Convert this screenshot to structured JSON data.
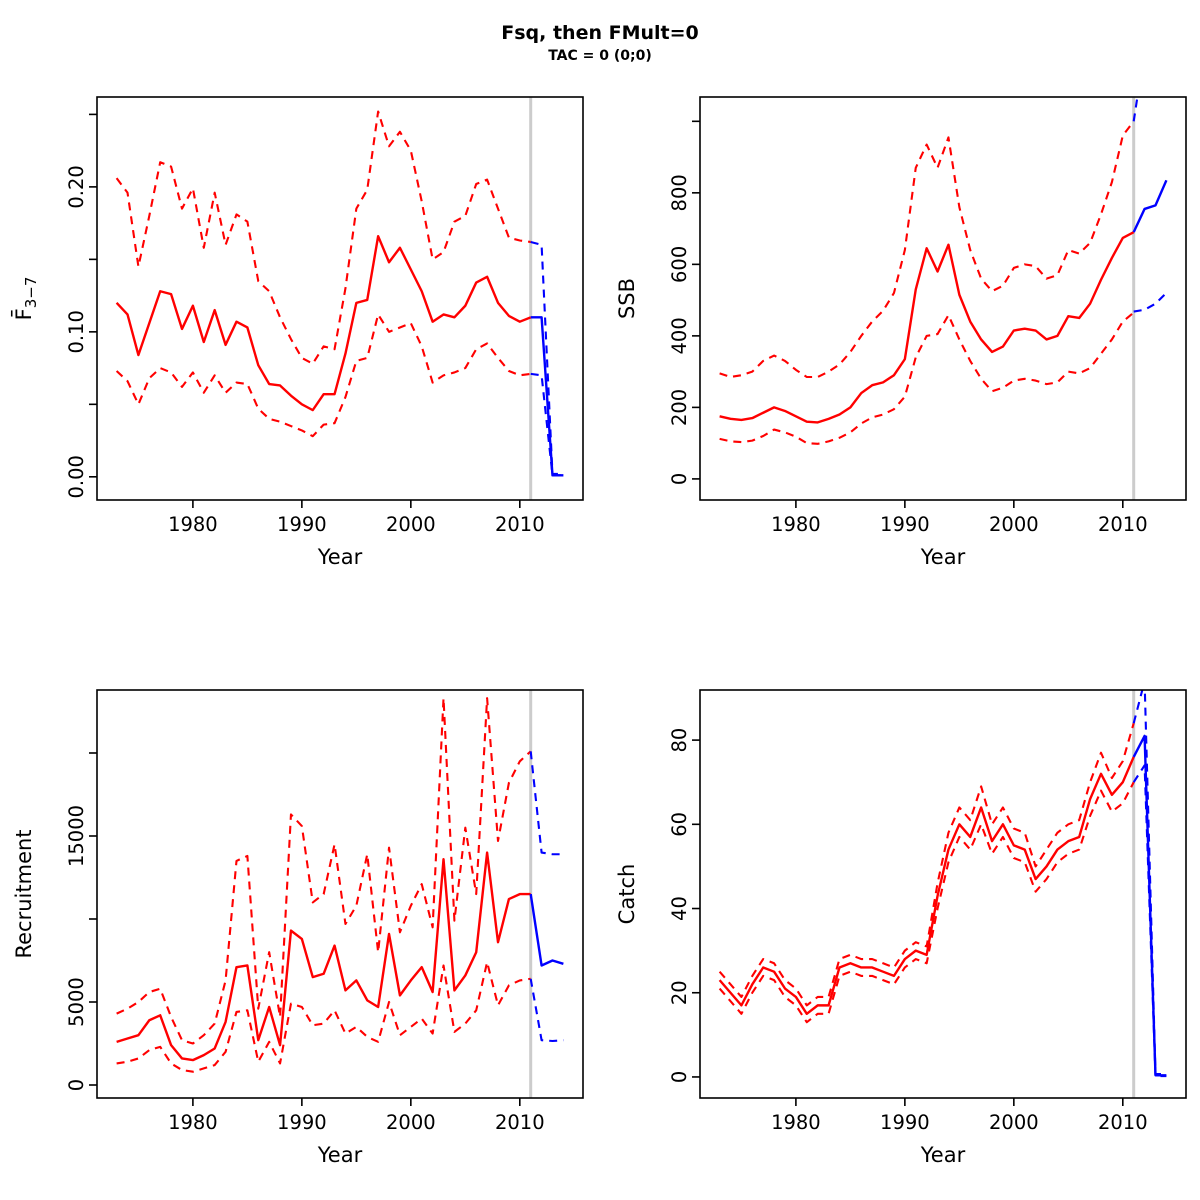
{
  "title": {
    "main": "Fsq, then FMult=0",
    "sub": "TAC = 0 (0;0)"
  },
  "colors": {
    "history": "#ff0000",
    "projection": "#0000ff",
    "divider": "#cccccc",
    "axis": "#000000"
  },
  "projection_start_year": 2011,
  "chart_data": [
    {
      "type": "line",
      "name": "fbar",
      "ylabel": {
        "base": "F̄",
        "sub": "3−7"
      },
      "xlabel": "Year",
      "xlim": [
        1971.2,
        2015.8
      ],
      "ylim": [
        -0.016,
        0.262
      ],
      "x_ticks": {
        "values": [
          1980,
          1990,
          2000,
          2010
        ],
        "labels": [
          "1980",
          "1990",
          "2000",
          "2010"
        ]
      },
      "y_ticks": {
        "values": [
          0,
          0.05,
          0.1,
          0.15,
          0.2,
          0.25
        ],
        "labels": [
          "0.00",
          "",
          "0.10",
          "",
          "0.20",
          ""
        ]
      },
      "vline_year": 2011,
      "series": [
        {
          "id": "upper-history",
          "role": "upper95",
          "period": "history",
          "line": "dashed",
          "color_key": "history",
          "start_year": 1973,
          "values": [
            0.206,
            0.196,
            0.145,
            0.18,
            0.217,
            0.214,
            0.185,
            0.199,
            0.158,
            0.196,
            0.16,
            0.181,
            0.176,
            0.135,
            0.128,
            0.11,
            0.095,
            0.082,
            0.078,
            0.09,
            0.088,
            0.13,
            0.185,
            0.198,
            0.252,
            0.228,
            0.238,
            0.225,
            0.19,
            0.15,
            0.155,
            0.176,
            0.18,
            0.202,
            0.205,
            0.185,
            0.165,
            0.163,
            0.162
          ]
        },
        {
          "id": "median-history",
          "role": "median",
          "period": "history",
          "line": "solid",
          "color_key": "history",
          "start_year": 1973,
          "values": [
            0.12,
            0.112,
            0.084,
            0.106,
            0.128,
            0.126,
            0.102,
            0.118,
            0.093,
            0.115,
            0.091,
            0.107,
            0.103,
            0.077,
            0.064,
            0.063,
            0.056,
            0.05,
            0.046,
            0.057,
            0.057,
            0.085,
            0.12,
            0.122,
            0.166,
            0.148,
            0.158,
            0.143,
            0.128,
            0.107,
            0.112,
            0.11,
            0.118,
            0.134,
            0.138,
            0.12,
            0.111,
            0.107,
            0.11
          ]
        },
        {
          "id": "lower-history",
          "role": "lower5",
          "period": "history",
          "line": "dashed",
          "color_key": "history",
          "start_year": 1973,
          "values": [
            0.073,
            0.066,
            0.05,
            0.068,
            0.075,
            0.072,
            0.062,
            0.072,
            0.058,
            0.07,
            0.058,
            0.065,
            0.064,
            0.047,
            0.04,
            0.038,
            0.035,
            0.032,
            0.028,
            0.036,
            0.037,
            0.055,
            0.08,
            0.082,
            0.112,
            0.1,
            0.103,
            0.106,
            0.09,
            0.065,
            0.07,
            0.072,
            0.075,
            0.088,
            0.092,
            0.082,
            0.073,
            0.07,
            0.071
          ]
        },
        {
          "id": "upper-projection",
          "role": "upper95",
          "period": "projection",
          "line": "dashed",
          "color_key": "projection",
          "start_year": 2011,
          "values": [
            0.162,
            0.16,
            0.002,
            0.002
          ]
        },
        {
          "id": "median-projection",
          "role": "median",
          "period": "projection",
          "line": "solid",
          "color_key": "projection",
          "start_year": 2011,
          "values": [
            0.11,
            0.11,
            0.001,
            0.001
          ]
        },
        {
          "id": "lower-projection",
          "role": "lower5",
          "period": "projection",
          "line": "dashed",
          "color_key": "projection",
          "start_year": 2011,
          "values": [
            0.071,
            0.07,
            0.001,
            0.001
          ]
        }
      ]
    },
    {
      "type": "line",
      "name": "ssb",
      "ylabel": "SSB",
      "xlabel": "Year",
      "xlim": [
        1971.2,
        2015.8
      ],
      "ylim": [
        -59,
        1068
      ],
      "x_ticks": {
        "values": [
          1980,
          1990,
          2000,
          2010
        ],
        "labels": [
          "1980",
          "1990",
          "2000",
          "2010"
        ]
      },
      "y_ticks": {
        "values": [
          0,
          200,
          400,
          600,
          800,
          1000
        ],
        "labels": [
          "0",
          "200",
          "400",
          "600",
          "800",
          ""
        ]
      },
      "vline_year": 2011,
      "series": [
        {
          "id": "upper-history",
          "role": "upper95",
          "period": "history",
          "line": "dashed",
          "color_key": "history",
          "start_year": 1973,
          "values": [
            295,
            285,
            290,
            300,
            330,
            345,
            330,
            305,
            285,
            285,
            300,
            320,
            355,
            400,
            440,
            470,
            520,
            640,
            870,
            935,
            870,
            955,
            760,
            640,
            560,
            525,
            540,
            590,
            600,
            595,
            560,
            570,
            640,
            630,
            660,
            740,
            830,
            960,
            1000
          ]
        },
        {
          "id": "median-history",
          "role": "median",
          "period": "history",
          "line": "solid",
          "color_key": "history",
          "start_year": 1973,
          "values": [
            175,
            168,
            165,
            170,
            185,
            200,
            190,
            175,
            160,
            158,
            168,
            180,
            200,
            240,
            262,
            270,
            290,
            335,
            530,
            645,
            580,
            655,
            515,
            440,
            390,
            355,
            370,
            415,
            420,
            415,
            390,
            400,
            455,
            450,
            490,
            557,
            618,
            674,
            690
          ]
        },
        {
          "id": "lower-history",
          "role": "lower5",
          "period": "history",
          "line": "dashed",
          "color_key": "history",
          "start_year": 1973,
          "values": [
            112,
            105,
            103,
            107,
            120,
            138,
            130,
            118,
            100,
            98,
            105,
            115,
            130,
            155,
            172,
            180,
            195,
            230,
            340,
            400,
            405,
            458,
            390,
            330,
            280,
            245,
            255,
            275,
            280,
            275,
            265,
            270,
            300,
            295,
            310,
            350,
            390,
            440,
            465
          ]
        },
        {
          "id": "upper-projection",
          "role": "upper95",
          "period": "projection",
          "line": "dashed",
          "color_key": "projection",
          "start_year": 2011,
          "values": [
            1000,
            1200,
            1280,
            1350
          ]
        },
        {
          "id": "median-projection",
          "role": "median",
          "period": "projection",
          "line": "solid",
          "color_key": "projection",
          "start_year": 2011,
          "values": [
            690,
            755,
            765,
            835
          ]
        },
        {
          "id": "lower-projection",
          "role": "lower5",
          "period": "projection",
          "line": "dashed",
          "color_key": "projection",
          "start_year": 2011,
          "values": [
            468,
            473,
            490,
            520
          ]
        }
      ]
    },
    {
      "type": "line",
      "name": "recruitment",
      "ylabel": "Recruitment",
      "xlabel": "Year",
      "xlim": [
        1971.2,
        2015.8
      ],
      "ylim": [
        -783,
        23795
      ],
      "x_ticks": {
        "values": [
          1980,
          1990,
          2000,
          2010
        ],
        "labels": [
          "1980",
          "1990",
          "2000",
          "2010"
        ]
      },
      "y_ticks": {
        "values": [
          0,
          5000,
          10000,
          15000,
          20000
        ],
        "labels": [
          "0",
          "5000",
          "",
          "15000",
          ""
        ]
      },
      "vline_year": 2011,
      "series": [
        {
          "id": "upper-history",
          "role": "upper95",
          "period": "history",
          "line": "dashed",
          "color_key": "history",
          "start_year": 1973,
          "values": [
            4300,
            4600,
            5000,
            5600,
            5800,
            4100,
            2700,
            2500,
            3000,
            3700,
            6300,
            13500,
            13800,
            4600,
            8000,
            4100,
            16300,
            15600,
            11000,
            11500,
            14500,
            9700,
            10800,
            13900,
            8000,
            14300,
            9200,
            10800,
            12100,
            9500,
            23300,
            9900,
            15500,
            11500,
            23300,
            14700,
            18200,
            19500,
            20100
          ]
        },
        {
          "id": "median-history",
          "role": "median",
          "period": "history",
          "line": "solid",
          "color_key": "history",
          "start_year": 1973,
          "values": [
            2600,
            2800,
            3000,
            3900,
            4200,
            2400,
            1600,
            1500,
            1800,
            2200,
            3800,
            7100,
            7200,
            2700,
            4700,
            2400,
            9300,
            8800,
            6500,
            6700,
            8400,
            5700,
            6300,
            5100,
            4700,
            9100,
            5400,
            6300,
            7100,
            5600,
            13600,
            5700,
            6600,
            8000,
            14000,
            8600,
            11200,
            11500,
            11500
          ]
        },
        {
          "id": "lower-history",
          "role": "lower5",
          "period": "history",
          "line": "dashed",
          "color_key": "history",
          "start_year": 1973,
          "values": [
            1300,
            1400,
            1600,
            2100,
            2300,
            1300,
            900,
            800,
            1000,
            1200,
            2000,
            4400,
            4500,
            1400,
            2600,
            1300,
            4900,
            4700,
            3600,
            3700,
            4500,
            3100,
            3500,
            2900,
            2600,
            5000,
            3000,
            3500,
            4000,
            3100,
            7200,
            3200,
            3700,
            4500,
            7400,
            4800,
            6000,
            6300,
            6400
          ]
        },
        {
          "id": "upper-projection",
          "role": "upper95",
          "period": "projection",
          "line": "dashed",
          "color_key": "projection",
          "start_year": 2011,
          "values": [
            20100,
            14000,
            13900,
            13900
          ]
        },
        {
          "id": "median-projection",
          "role": "median",
          "period": "projection",
          "line": "solid",
          "color_key": "projection",
          "start_year": 2011,
          "values": [
            11500,
            7200,
            7500,
            7300
          ]
        },
        {
          "id": "lower-projection",
          "role": "lower5",
          "period": "projection",
          "line": "dashed",
          "color_key": "projection",
          "start_year": 2011,
          "values": [
            6400,
            2700,
            2650,
            2700
          ]
        }
      ]
    },
    {
      "type": "line",
      "name": "catch",
      "ylabel": "Catch",
      "xlabel": "Year",
      "xlim": [
        1971.2,
        2015.8
      ],
      "ylim": [
        -5,
        91.9
      ],
      "x_ticks": {
        "values": [
          1980,
          1990,
          2000,
          2010
        ],
        "labels": [
          "1980",
          "1990",
          "2000",
          "2010"
        ]
      },
      "y_ticks": {
        "values": [
          0,
          20,
          40,
          60,
          80
        ],
        "labels": [
          "0",
          "20",
          "40",
          "60",
          "80"
        ]
      },
      "vline_year": 2011,
      "series": [
        {
          "id": "upper-history",
          "role": "upper95",
          "period": "history",
          "line": "dashed",
          "color_key": "history",
          "start_year": 1973,
          "values": [
            25,
            22,
            19,
            24,
            28,
            27,
            23,
            21,
            17,
            19,
            19,
            28,
            29,
            28,
            28,
            27,
            26,
            30,
            32,
            31,
            46,
            58,
            64,
            61,
            69,
            60,
            64,
            59,
            58,
            50,
            54,
            58,
            60,
            61,
            70,
            77,
            71,
            75,
            84
          ]
        },
        {
          "id": "median-history",
          "role": "median",
          "period": "history",
          "line": "solid",
          "color_key": "history",
          "start_year": 1973,
          "values": [
            23,
            20,
            17,
            22,
            26,
            25,
            21,
            19,
            15,
            17,
            17,
            26,
            27,
            26,
            26,
            25,
            24,
            28,
            30,
            29,
            43,
            54,
            60,
            57,
            64,
            56,
            60,
            55,
            54,
            47,
            50,
            54,
            56,
            57,
            66,
            72,
            67,
            70,
            76
          ]
        },
        {
          "id": "lower-history",
          "role": "lower5",
          "period": "history",
          "line": "dashed",
          "color_key": "history",
          "start_year": 1973,
          "values": [
            21,
            18,
            15,
            20,
            24,
            23,
            19,
            17,
            13,
            15,
            15,
            24,
            25,
            24,
            24,
            23,
            22,
            26,
            28,
            27,
            40,
            51,
            57,
            54,
            60,
            53,
            57,
            52,
            51,
            44,
            47,
            51,
            53,
            54,
            62,
            68,
            63,
            65,
            70
          ]
        },
        {
          "id": "upper-projection",
          "role": "upper95",
          "period": "projection",
          "line": "dashed",
          "color_key": "projection",
          "start_year": 2011,
          "values": [
            84,
            94,
            0.7,
            0.7
          ]
        },
        {
          "id": "median-projection",
          "role": "median",
          "period": "projection",
          "line": "solid",
          "color_key": "projection",
          "start_year": 2011,
          "values": [
            76,
            81,
            0.4,
            0.4
          ]
        },
        {
          "id": "lower-projection",
          "role": "lower5",
          "period": "projection",
          "line": "dashed",
          "color_key": "projection",
          "start_year": 2011,
          "values": [
            70,
            74,
            0.2,
            0.2
          ]
        }
      ]
    }
  ]
}
